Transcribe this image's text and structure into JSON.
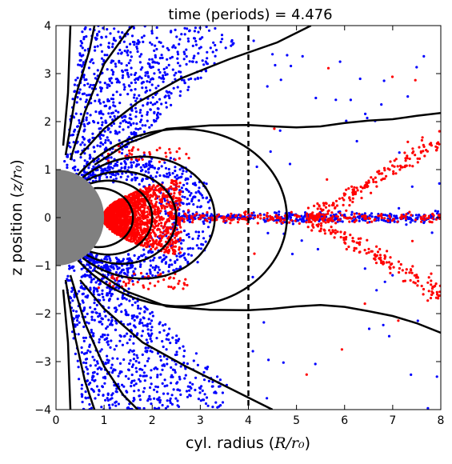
{
  "chart_data": {
    "type": "scatter",
    "title": "time (periods) = 4.476",
    "xlabel_prefix": "cyl. radius (",
    "xlabel_math": "R/r₀",
    "xlabel_suffix": ")",
    "ylabel_prefix": "z position (",
    "ylabel_math": "z/r₀",
    "ylabel_suffix": ")",
    "xlim": [
      0,
      8
    ],
    "ylim": [
      -4,
      4
    ],
    "xticks": [
      0,
      1,
      2,
      3,
      4,
      5,
      6,
      7,
      8
    ],
    "yticks": [
      -4,
      -3,
      -2,
      -1,
      0,
      1,
      2,
      3,
      4
    ],
    "grid": false,
    "legend": "none",
    "body": {
      "radius": 1.0,
      "color": "#808080"
    },
    "reference_line": {
      "x": 4.0,
      "style": "dashed"
    },
    "colors": {
      "particles_a": "#0000ff",
      "particles_b": "#ff0000",
      "field_lines": "#000000"
    },
    "closed_field_lines_L": [
      1.6,
      2.0,
      2.5,
      3.3,
      4.8
    ],
    "open_field_lines": [
      {
        "name": "upper-wind",
        "points": [
          [
            0.8,
            1.1
          ],
          [
            1.5,
            1.55
          ],
          [
            2.3,
            1.85
          ],
          [
            3.2,
            1.92
          ],
          [
            4.0,
            1.93
          ],
          [
            4.5,
            1.9
          ],
          [
            5.0,
            1.88
          ],
          [
            5.5,
            1.9
          ],
          [
            6.0,
            1.97
          ],
          [
            6.5,
            2.02
          ],
          [
            7.0,
            2.05
          ],
          [
            7.5,
            2.12
          ],
          [
            8.0,
            2.18
          ]
        ]
      },
      {
        "name": "lower-wind",
        "points": [
          [
            0.8,
            -1.1
          ],
          [
            1.5,
            -1.55
          ],
          [
            2.3,
            -1.85
          ],
          [
            3.2,
            -1.92
          ],
          [
            4.0,
            -1.93
          ],
          [
            4.5,
            -1.9
          ],
          [
            5.0,
            -1.85
          ],
          [
            5.5,
            -1.82
          ],
          [
            6.0,
            -1.86
          ],
          [
            6.5,
            -1.95
          ],
          [
            7.0,
            -2.05
          ],
          [
            7.5,
            -2.2
          ],
          [
            8.0,
            -2.4
          ]
        ]
      },
      {
        "name": "upper-outer",
        "points": [
          [
            0.5,
            1.3
          ],
          [
            1.0,
            1.85
          ],
          [
            1.7,
            2.4
          ],
          [
            2.6,
            2.9
          ],
          [
            3.6,
            3.3
          ],
          [
            4.6,
            3.65
          ],
          [
            5.3,
            4.0
          ]
        ]
      },
      {
        "name": "lower-outer",
        "points": [
          [
            0.5,
            -1.3
          ],
          [
            1.0,
            -1.9
          ],
          [
            1.8,
            -2.6
          ],
          [
            2.7,
            -3.1
          ],
          [
            3.5,
            -3.5
          ],
          [
            4.3,
            -3.9
          ],
          [
            4.5,
            -4.0
          ]
        ]
      },
      {
        "name": "upper-polar-1",
        "points": [
          [
            0.3,
            1.2
          ],
          [
            0.6,
            2.2
          ],
          [
            1.0,
            3.2
          ],
          [
            1.5,
            3.9
          ],
          [
            1.6,
            4.0
          ]
        ]
      },
      {
        "name": "upper-polar-2",
        "points": [
          [
            0.2,
            1.3
          ],
          [
            0.4,
            2.5
          ],
          [
            0.7,
            3.5
          ],
          [
            0.8,
            4.0
          ]
        ]
      },
      {
        "name": "upper-polar-3",
        "points": [
          [
            0.15,
            1.5
          ],
          [
            0.25,
            2.6
          ],
          [
            0.3,
            4.0
          ]
        ]
      },
      {
        "name": "lower-polar-1",
        "points": [
          [
            0.3,
            -1.2
          ],
          [
            0.6,
            -2.2
          ],
          [
            1.0,
            -3.1
          ],
          [
            1.4,
            -3.7
          ],
          [
            1.7,
            -4.0
          ]
        ]
      },
      {
        "name": "lower-polar-2",
        "points": [
          [
            0.2,
            -1.3
          ],
          [
            0.4,
            -2.5
          ],
          [
            0.6,
            -3.4
          ],
          [
            0.8,
            -4.0
          ]
        ]
      },
      {
        "name": "lower-polar-3",
        "points": [
          [
            0.15,
            -1.5
          ],
          [
            0.25,
            -2.6
          ],
          [
            0.3,
            -4.0
          ]
        ]
      }
    ],
    "series": [
      {
        "color": "#0000ff",
        "regions": [
          {
            "kind": "polar-cone-upper",
            "count": 900
          },
          {
            "kind": "polar-cone-lower",
            "count": 900
          },
          {
            "kind": "closed-shell",
            "count": 700
          },
          {
            "kind": "equatorial-band",
            "count": 350
          },
          {
            "kind": "scattered-outer",
            "count": 60
          }
        ]
      },
      {
        "color": "#ff0000",
        "regions": [
          {
            "kind": "inner-torus",
            "count": 1800
          },
          {
            "kind": "equatorial-band",
            "count": 250
          },
          {
            "kind": "x-shaped-outflow",
            "count": 320
          },
          {
            "kind": "shell-tips",
            "count": 90
          },
          {
            "kind": "scattered-outer",
            "count": 12
          }
        ]
      }
    ]
  }
}
